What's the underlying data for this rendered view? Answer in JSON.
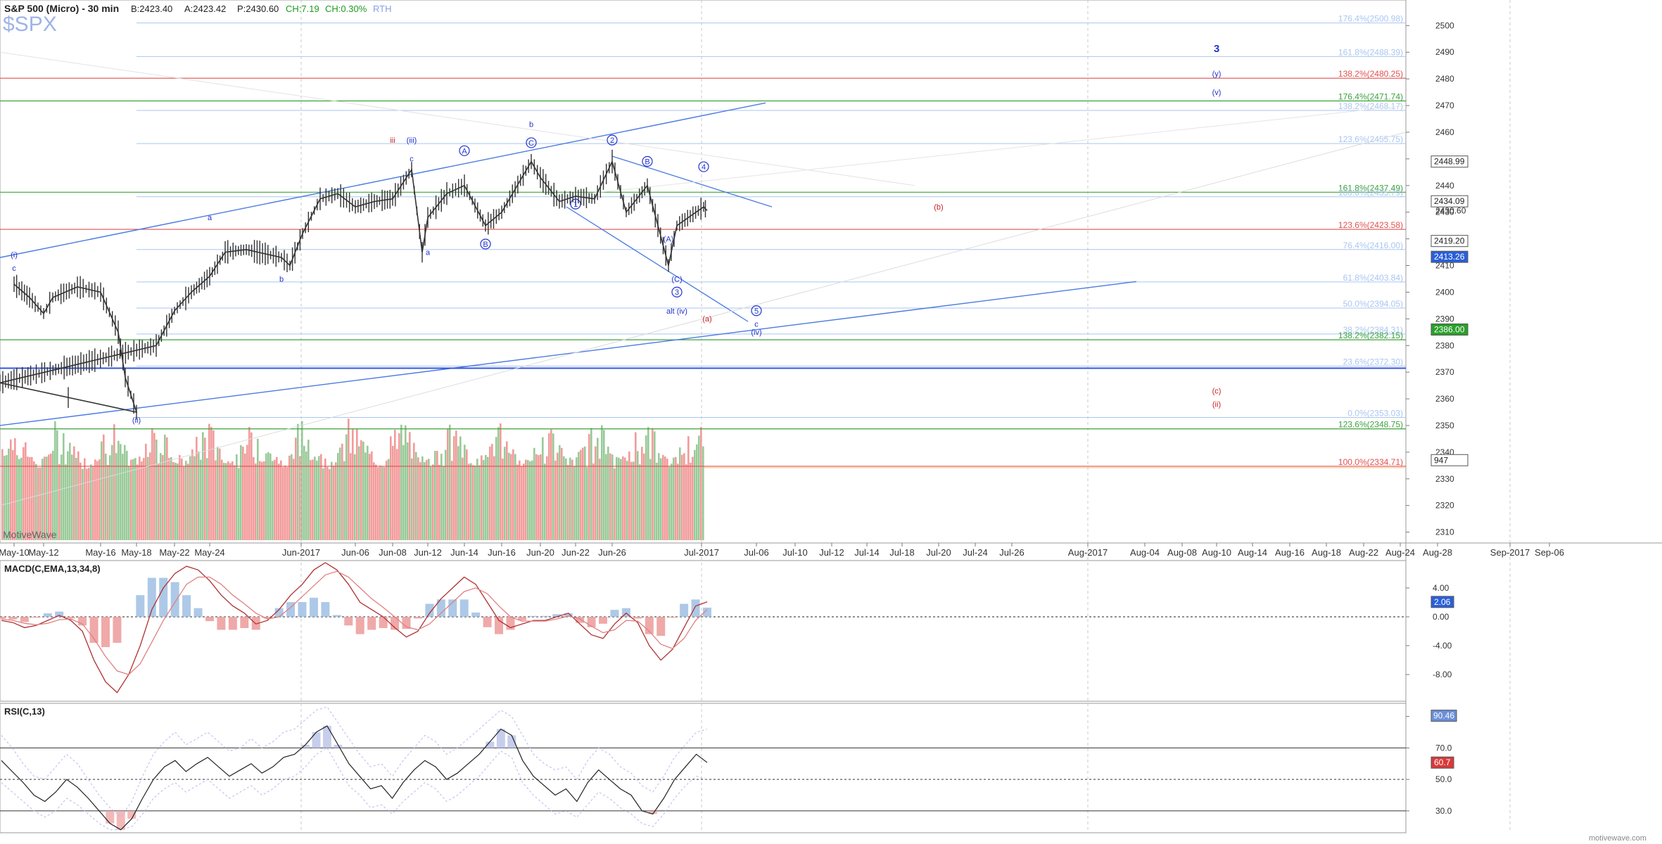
{
  "header": {
    "title": "S&P 500 (Micro) - 30 min",
    "bid": "B:2423.40",
    "ask": "A:2423.42",
    "price": "P:2430.60",
    "change": "CH:7.19",
    "change_pct": "CH:0.30%",
    "session": "RTH",
    "symbol": "$SPX"
  },
  "watermark": "MotiveWave",
  "footer_brand": "motivewave.com",
  "colors": {
    "bull_bar": "#86c186",
    "bear_bar": "#f08a8a",
    "price_bars": "#333333",
    "fib_blue": "#a9c6f0",
    "fib_red": "#e05050",
    "fib_green": "#3da23d",
    "wave_blue": "#2233cc",
    "wave_red": "#cc2222",
    "trend_blue": "#4a7ae0",
    "macd_line": "#b03030",
    "signal_line": "#e08080",
    "rsi_line": "#222222"
  },
  "x_axis": {
    "labels": [
      "May-10",
      "May-12",
      "May-16",
      "May-18",
      "May-22",
      "May-24",
      "Jun-2017",
      "Jun-06",
      "Jun-08",
      "Jun-12",
      "Jun-14",
      "Jun-16",
      "Jun-20",
      "Jun-22",
      "Jun-26",
      "Jul-2017",
      "Jul-06",
      "Jul-10",
      "Jul-12",
      "Jul-14",
      "Jul-18",
      "Jul-20",
      "Jul-24",
      "Jul-26",
      "Aug-2017",
      "Aug-04",
      "Aug-08",
      "Aug-10",
      "Aug-14",
      "Aug-16",
      "Aug-18",
      "Aug-22",
      "Aug-24",
      "Aug-28",
      "Sep-2017",
      "Sep-06"
    ]
  },
  "chart_data": [
    {
      "type": "line",
      "name": "price",
      "y_ticks": [
        2310,
        2320,
        2330,
        2340,
        2350,
        2360,
        2370,
        2380,
        2390,
        2400,
        2410,
        2420,
        2430,
        2440,
        2450,
        2460,
        2470,
        2480,
        2490,
        2500
      ],
      "ylim": [
        2307,
        2508
      ],
      "price_path": [
        [
          "May-10",
          2403
        ],
        [
          "May-11",
          2398
        ],
        [
          "May-12",
          2392
        ],
        [
          "May-12b",
          2398
        ],
        [
          "May-15",
          2402
        ],
        [
          "May-16",
          2400
        ],
        [
          "May-17",
          2385
        ],
        [
          "May-17b",
          2368
        ],
        [
          "May-18",
          2355
        ],
        [
          "May-18b",
          2366
        ],
        [
          "May-19",
          2380
        ],
        [
          "May-22",
          2393
        ],
        [
          "May-23",
          2400
        ],
        [
          "May-24",
          2406
        ],
        [
          "May-25",
          2415
        ],
        [
          "May-26",
          2416
        ],
        [
          "May-30",
          2413
        ],
        [
          "May-31",
          2410
        ],
        [
          "Jun-01",
          2422
        ],
        [
          "Jun-02",
          2435
        ],
        [
          "Jun-05",
          2437
        ],
        [
          "Jun-06",
          2432
        ],
        [
          "Jun-07",
          2434
        ],
        [
          "Jun-08",
          2435
        ],
        [
          "Jun-09",
          2446
        ],
        [
          "Jun-09b",
          2415
        ],
        [
          "Jun-12",
          2428
        ],
        [
          "Jun-13",
          2437
        ],
        [
          "Jun-14",
          2440
        ],
        [
          "Jun-15",
          2425
        ],
        [
          "Jun-16",
          2430
        ],
        [
          "Jun-19",
          2449
        ],
        [
          "Jun-20",
          2443
        ],
        [
          "Jun-21",
          2434
        ],
        [
          "Jun-22",
          2436
        ],
        [
          "Jun-23",
          2435
        ],
        [
          "Jun-26",
          2449
        ],
        [
          "Jun-27",
          2430
        ],
        [
          "Jun-28",
          2440
        ],
        [
          "Jun-29",
          2410
        ],
        [
          "Jun-30",
          2425
        ],
        [
          "Jul-03",
          2432
        ],
        [
          "Jul-05",
          2430.6
        ]
      ],
      "fib_levels": [
        {
          "label": "176.4%(2500.98)",
          "value": 2500.98,
          "color": "blue"
        },
        {
          "label": "161.8%(2488.39)",
          "value": 2488.39,
          "color": "blue"
        },
        {
          "label": "138.2%(2480.25)",
          "value": 2480.25,
          "color": "red"
        },
        {
          "label": "176.4%(2471.74)",
          "value": 2471.74,
          "color": "green"
        },
        {
          "label": "138.2%(2468.17)",
          "value": 2468.17,
          "color": "blue"
        },
        {
          "label": "123.6%(2455.75)",
          "value": 2455.75,
          "color": "blue"
        },
        {
          "label": "161.8%(2437.49)",
          "value": 2437.49,
          "color": "green"
        },
        {
          "label": "100.0%(2435.79)",
          "value": 2435.79,
          "color": "blue"
        },
        {
          "label": "123.6%(2423.58)",
          "value": 2423.58,
          "color": "red"
        },
        {
          "label": "76.4%(2416.00)",
          "value": 2416.0,
          "color": "blue"
        },
        {
          "label": "61.8%(2403.84)",
          "value": 2403.84,
          "color": "blue"
        },
        {
          "label": "50.0%(2394.05)",
          "value": 2394.05,
          "color": "blue"
        },
        {
          "label": "38.2%(2384.31)",
          "value": 2384.31,
          "color": "blue"
        },
        {
          "label": "138.2%(2382.15)",
          "value": 2382.15,
          "color": "green"
        },
        {
          "label": "23.6%(2372.30)",
          "value": 2372.3,
          "color": "blue"
        },
        {
          "label": "0.0%(2353.03)",
          "value": 2353.03,
          "color": "blue"
        },
        {
          "label": "123.6%(2348.75)",
          "value": 2348.75,
          "color": "green"
        },
        {
          "label": "100.0%(2334.71)",
          "value": 2334.71,
          "color": "red"
        }
      ],
      "price_tags": [
        {
          "label": "2448.99",
          "value": 2448.99,
          "style": "plain"
        },
        {
          "label": "2434.09",
          "value": 2434.09,
          "style": "plain"
        },
        {
          "label": "2430.60",
          "value": 2430.6,
          "style": "none"
        },
        {
          "label": "2419.20",
          "value": 2419.2,
          "style": "plain"
        },
        {
          "label": "2413.26",
          "value": 2413.26,
          "style": "blue"
        },
        {
          "label": "2386.00",
          "value": 2386.0,
          "style": "green"
        },
        {
          "label": "947",
          "value": 2337,
          "style": "plain"
        }
      ],
      "wave_labels": [
        {
          "text": "3",
          "x": "Aug-10",
          "y": 2490,
          "color": "blue",
          "bold": true
        },
        {
          "text": "(y)",
          "x": "Aug-10",
          "y": 2481,
          "color": "blue"
        },
        {
          "text": "(v)",
          "x": "Aug-10",
          "y": 2474,
          "color": "blue"
        },
        {
          "text": "iii",
          "x": "Jun-08",
          "y": 2456,
          "color": "red"
        },
        {
          "text": "(iii)",
          "x": "Jun-09",
          "y": 2456,
          "color": "blue"
        },
        {
          "text": "c",
          "x": "Jun-09",
          "y": 2449,
          "color": "blue"
        },
        {
          "text": "A",
          "x": "Jun-14",
          "y": 2452,
          "color": "blue"
        },
        {
          "text": "b",
          "x": "Jun-19",
          "y": 2462,
          "color": "blue"
        },
        {
          "text": "C",
          "x": "Jun-19",
          "y": 2455,
          "color": "blue"
        },
        {
          "text": "2",
          "x": "Jun-26",
          "y": 2456,
          "color": "blue"
        },
        {
          "text": "B",
          "x": "Jun-28",
          "y": 2448,
          "color": "blue"
        },
        {
          "text": "4",
          "x": "Jul-03",
          "y": 2446,
          "color": "blue"
        },
        {
          "text": "(b)",
          "x": "Jul-20",
          "y": 2431,
          "color": "red"
        },
        {
          "text": "1",
          "x": "Jun-22",
          "y": 2432,
          "color": "blue"
        },
        {
          "text": "(A)",
          "x": "Jun-29",
          "y": 2419,
          "color": "blue"
        },
        {
          "text": "a",
          "x": "May-24",
          "y": 2427,
          "color": "blue"
        },
        {
          "text": "a",
          "x": "Jun-12",
          "y": 2414,
          "color": "blue"
        },
        {
          "text": "B",
          "x": "Jun-15",
          "y": 2417,
          "color": "blue"
        },
        {
          "text": "b",
          "x": "May-30",
          "y": 2404,
          "color": "blue"
        },
        {
          "text": "(i)",
          "x": "May-10",
          "y": 2413,
          "color": "blue"
        },
        {
          "text": "c",
          "x": "May-10",
          "y": 2408,
          "color": "blue"
        },
        {
          "text": "(C)",
          "x": "Jun-30",
          "y": 2404,
          "color": "blue"
        },
        {
          "text": "3",
          "x": "Jun-30",
          "y": 2399,
          "color": "blue"
        },
        {
          "text": "alt (iv)",
          "x": "Jun-30",
          "y": 2392,
          "color": "blue"
        },
        {
          "text": "(a)",
          "x": "Jul-05",
          "y": 2389,
          "color": "red"
        },
        {
          "text": "5",
          "x": "Jul-06",
          "y": 2392,
          "color": "blue"
        },
        {
          "text": "c",
          "x": "Jul-06",
          "y": 2387,
          "color": "blue"
        },
        {
          "text": "(iv)",
          "x": "Jul-06",
          "y": 2384,
          "color": "blue"
        },
        {
          "text": "(ii)",
          "x": "May-18",
          "y": 2351,
          "color": "blue"
        },
        {
          "text": "(c)",
          "x": "Aug-10",
          "y": 2362,
          "color": "red"
        },
        {
          "text": "(ii)",
          "x": "Aug-10",
          "y": 2357,
          "color": "red"
        }
      ]
    },
    {
      "type": "bar",
      "name": "volume",
      "note_levels": "volume histogram behind price, green up / red down"
    },
    {
      "type": "line",
      "name": "macd",
      "title": "MACD(C,EMA,13,34,8)",
      "y_ticks": [
        4.0,
        0.0,
        -4.0,
        -8.0
      ],
      "ylim": [
        -11.5,
        7.5
      ],
      "last_value": "2.06",
      "macd": [
        -0.5,
        -0.8,
        -1.5,
        -1.2,
        -0.5,
        0.2,
        -0.5,
        -2,
        -6,
        -9,
        -10.5,
        -8,
        -4,
        1,
        4,
        6,
        7,
        6.5,
        5,
        3,
        1.5,
        0.5,
        -1,
        -0.5,
        1,
        3,
        4.5,
        6.5,
        7.5,
        6.5,
        4.5,
        2,
        1,
        0,
        -1.5,
        -2.8,
        -2,
        0.5,
        2.5,
        4,
        5.5,
        4.5,
        2,
        -0.5,
        -1.5,
        -1,
        -0.5,
        -0.5,
        0,
        0.5,
        -1,
        -2.5,
        -3,
        -1,
        0.5,
        -0.8,
        -4,
        -6,
        -4.5,
        -1.5,
        1.5,
        2.06
      ],
      "signal": [
        -0.3,
        -0.5,
        -0.9,
        -1.1,
        -0.9,
        -0.4,
        -0.3,
        -1,
        -3,
        -5.5,
        -7.5,
        -8,
        -6.5,
        -3.5,
        -0.5,
        2,
        4.5,
        5.5,
        5.5,
        4.5,
        3,
        1.8,
        0.5,
        -0.3,
        0,
        1.3,
        2.8,
        4.3,
        5.8,
        6.3,
        5.5,
        4,
        2.5,
        1.3,
        0,
        -1.4,
        -1.8,
        -1,
        0.5,
        2,
        3.5,
        4,
        3.2,
        1.5,
        0,
        -0.6,
        -0.6,
        -0.6,
        -0.3,
        0.1,
        -0.3,
        -1.3,
        -2.2,
        -1.8,
        -0.5,
        -0.6,
        -2,
        -3.8,
        -4.4,
        -3,
        -0.5,
        1
      ]
    },
    {
      "type": "line",
      "name": "rsi",
      "title": "RSI(C,13)",
      "y_ticks": [
        90.0,
        70.0,
        50.0,
        30.0
      ],
      "ylim": [
        17,
        97
      ],
      "last_value": "60.7",
      "upper_band_value": "90.46",
      "rsi": [
        62,
        55,
        48,
        40,
        36,
        42,
        50,
        45,
        38,
        30,
        22,
        18,
        25,
        38,
        50,
        58,
        62,
        55,
        60,
        64,
        58,
        52,
        56,
        60,
        54,
        58,
        64,
        66,
        72,
        80,
        84,
        72,
        60,
        52,
        44,
        46,
        38,
        48,
        56,
        62,
        58,
        50,
        54,
        60,
        66,
        74,
        82,
        78,
        62,
        52,
        46,
        40,
        44,
        36,
        48,
        56,
        50,
        44,
        40,
        30,
        28,
        38,
        50,
        58,
        66,
        60.7
      ],
      "rsi_upper": [
        78,
        70,
        60,
        52,
        50,
        58,
        66,
        60,
        50,
        40,
        32,
        26,
        36,
        52,
        66,
        74,
        80,
        72,
        76,
        80,
        74,
        68,
        70,
        76,
        70,
        74,
        80,
        82,
        88,
        94,
        96,
        86,
        76,
        66,
        58,
        60,
        52,
        62,
        70,
        78,
        74,
        66,
        70,
        76,
        82,
        88,
        94,
        90,
        78,
        66,
        60,
        56,
        58,
        50,
        62,
        70,
        66,
        58,
        54,
        46,
        42,
        52,
        64,
        72,
        80,
        82
      ],
      "rsi_lower": [
        48,
        42,
        36,
        30,
        26,
        30,
        38,
        34,
        28,
        22,
        18,
        18,
        20,
        28,
        38,
        44,
        48,
        42,
        46,
        50,
        44,
        38,
        42,
        46,
        40,
        44,
        50,
        52,
        58,
        66,
        70,
        58,
        46,
        40,
        32,
        34,
        28,
        36,
        42,
        48,
        44,
        36,
        40,
        46,
        52,
        60,
        68,
        64,
        48,
        40,
        34,
        28,
        30,
        26,
        34,
        42,
        38,
        32,
        28,
        22,
        20,
        28,
        38,
        46,
        52,
        50
      ]
    }
  ]
}
